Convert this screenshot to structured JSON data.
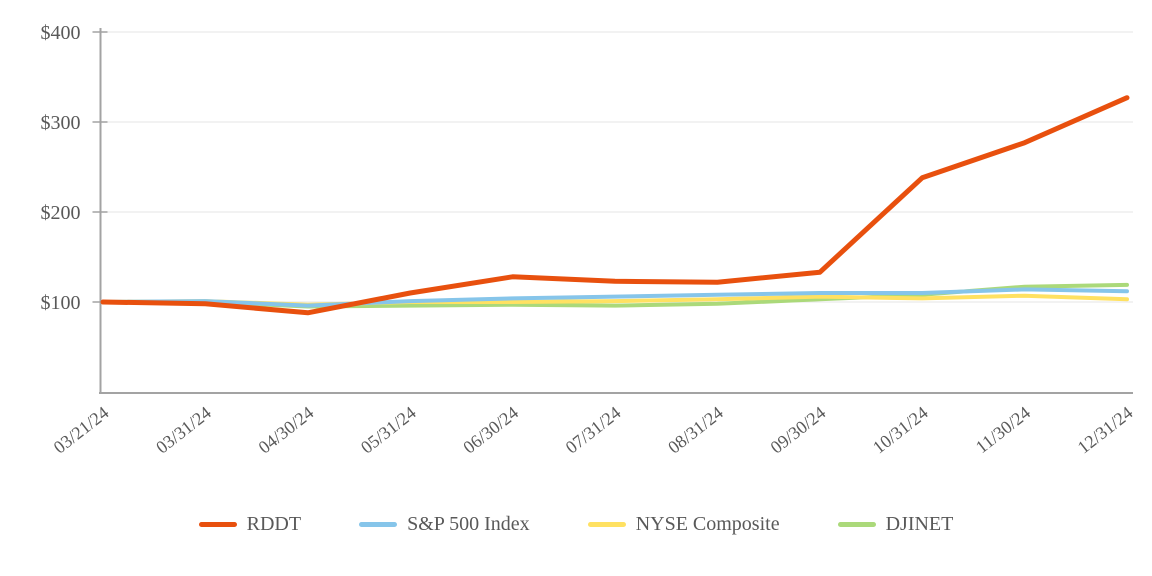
{
  "chart_data": {
    "type": "line",
    "title": "",
    "xlabel": "",
    "ylabel": "",
    "x": [
      "03/21/24",
      "03/31/24",
      "04/30/24",
      "05/31/24",
      "06/30/24",
      "07/31/24",
      "08/31/24",
      "09/30/24",
      "10/31/24",
      "11/30/24",
      "12/31/24"
    ],
    "y_axis": {
      "tick_labels": [
        "$100",
        "$200",
        "$300",
        "$400"
      ],
      "tick_values": [
        100,
        200,
        300,
        400
      ],
      "min": 0,
      "max": 400
    },
    "grid": true,
    "legend_position": "bottom-center",
    "series": [
      {
        "name": "RDDT",
        "color": "#E8500E",
        "line_width": 5,
        "values": [
          100,
          98,
          88,
          110,
          128,
          123,
          122,
          133,
          238,
          277,
          327
        ]
      },
      {
        "name": "S&P 500 Index",
        "color": "#86C5EA",
        "line_width": 4,
        "values": [
          100,
          101,
          96,
          101,
          104,
          106,
          108,
          110,
          110,
          114,
          112
        ]
      },
      {
        "name": "NYSE Composite",
        "color": "#FFE162",
        "line_width": 4,
        "values": [
          100,
          101,
          97,
          100,
          100,
          101,
          103,
          106,
          104,
          107,
          103
        ]
      },
      {
        "name": "DJINET",
        "color": "#ABD97A",
        "line_width": 4,
        "values": [
          100,
          100,
          95,
          96,
          97,
          96,
          98,
          103,
          108,
          117,
          119
        ]
      }
    ],
    "style_colors": {
      "axis": "#A3A3A3",
      "grid": "#EAEAEA",
      "label": "#595959"
    }
  }
}
